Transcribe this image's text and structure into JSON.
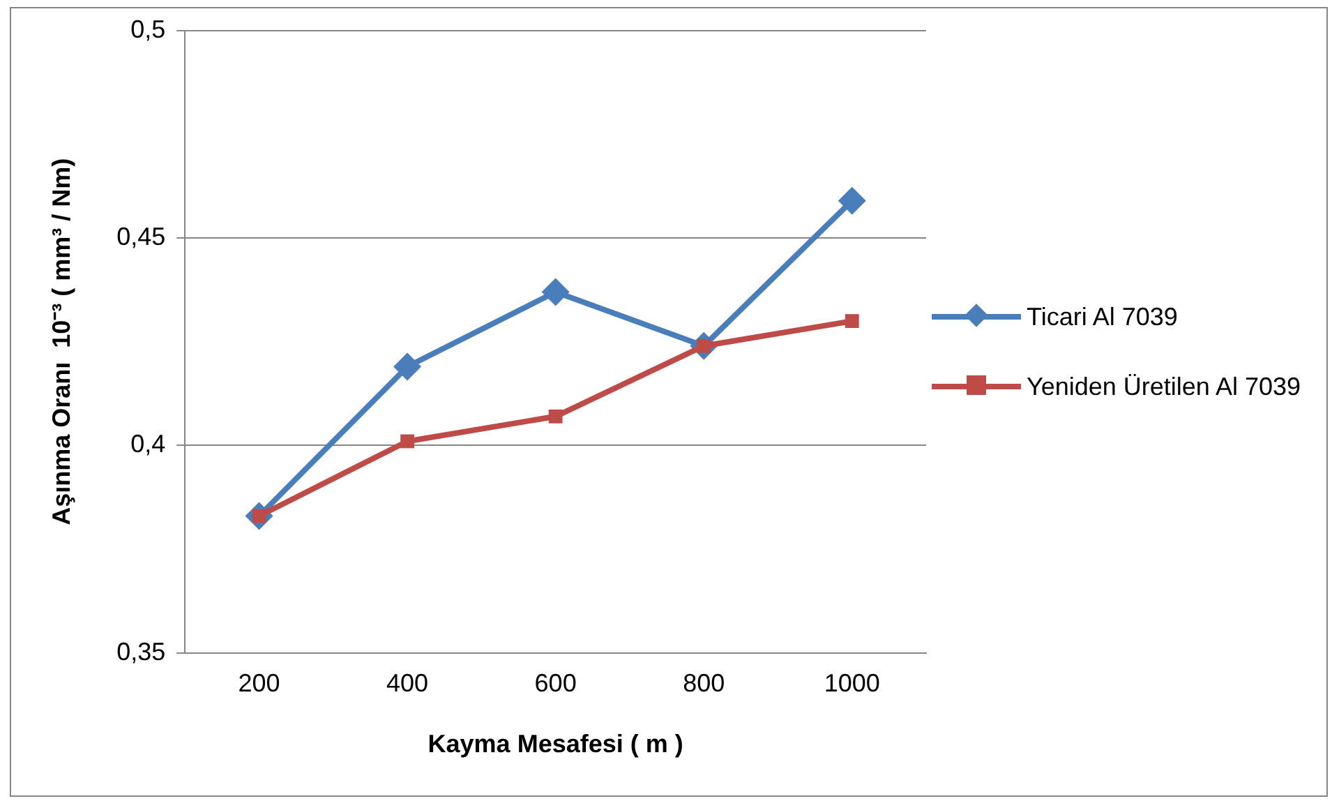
{
  "chart_data": {
    "type": "line",
    "xlabel": "Kayma Mesafesi ( m )",
    "ylabel": "Aşınma Oranı  10⁻³ ( mm³ / Nm)",
    "categories": [
      "200",
      "400",
      "600",
      "800",
      "1000"
    ],
    "series": [
      {
        "name": "Ticari Al 7039",
        "color": "#4a7ebb",
        "marker": "diamond",
        "values": [
          0.383,
          0.419,
          0.437,
          0.424,
          0.459
        ]
      },
      {
        "name": "Yeniden  Üretilen Al 7039",
        "color": "#be4b48",
        "marker": "square",
        "values": [
          0.383,
          0.401,
          0.407,
          0.424,
          0.43
        ]
      }
    ],
    "ylim": [
      0.35,
      0.5
    ],
    "yticks": [
      {
        "value": 0.35,
        "label": "0,35"
      },
      {
        "value": 0.4,
        "label": "0,4"
      },
      {
        "value": 0.45,
        "label": "0,45"
      },
      {
        "value": 0.5,
        "label": "0,5"
      }
    ],
    "grid": "y",
    "legend": "right",
    "line_style": "solid"
  }
}
